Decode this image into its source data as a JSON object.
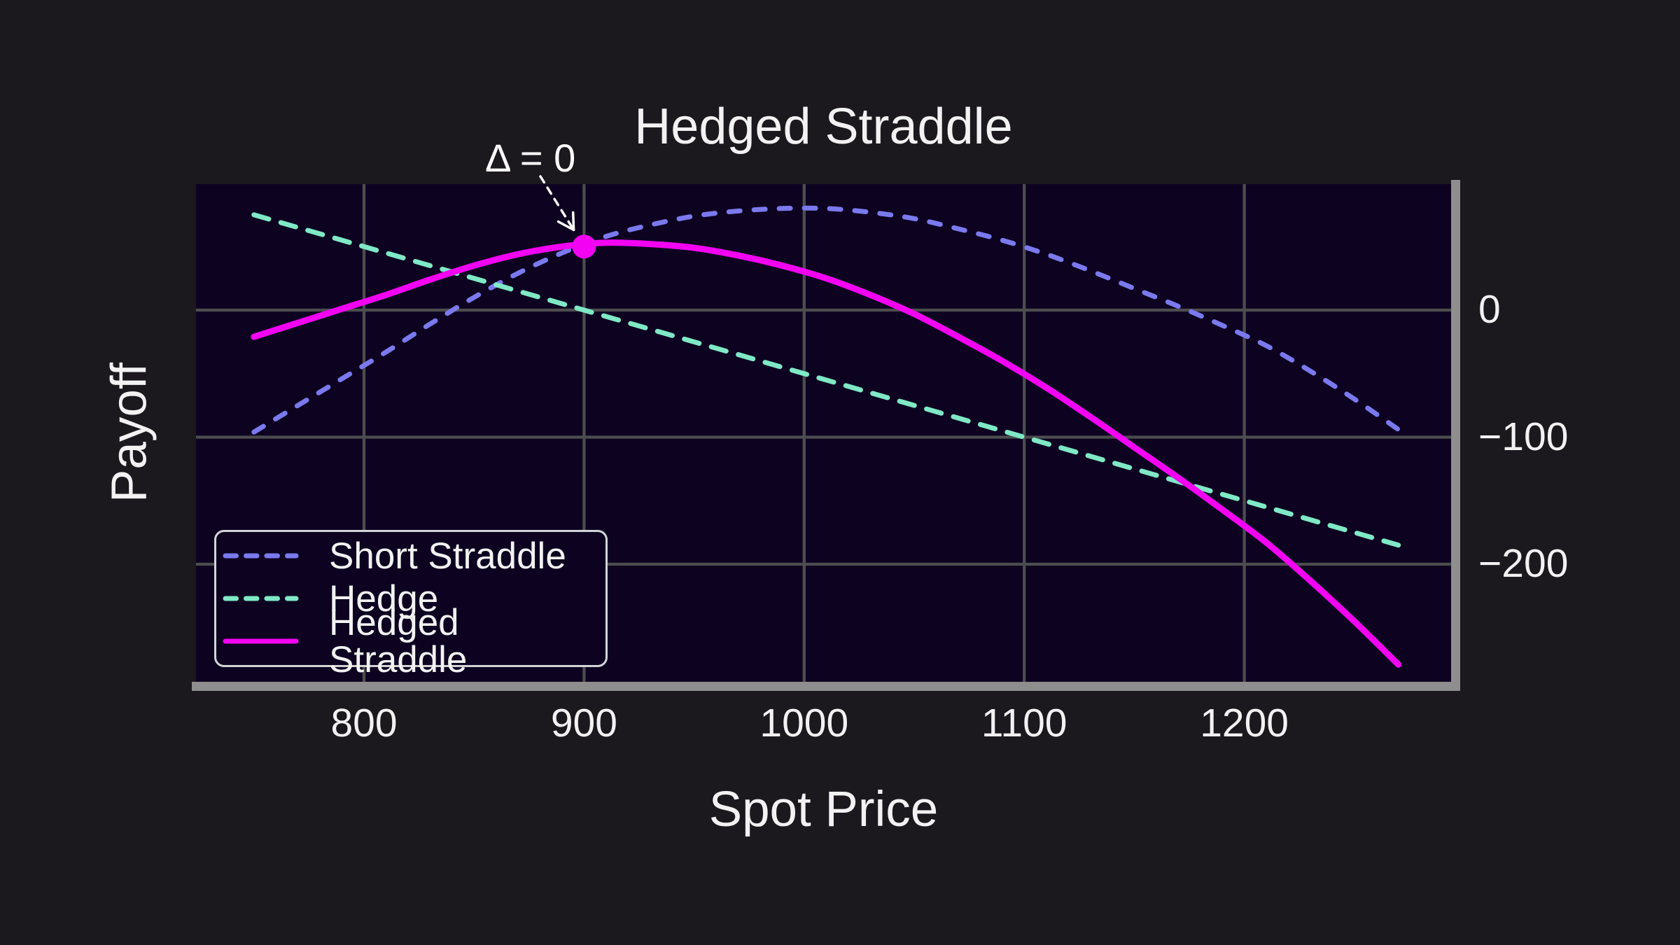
{
  "title": "Hedged Straddle",
  "axes": {
    "xlabel": "Spot Price",
    "ylabel": "Payoff",
    "x_tick_labels": [
      "800",
      "900",
      "1000",
      "1100",
      "1200"
    ],
    "y_tick_labels": [
      "0",
      "−100",
      "−200"
    ]
  },
  "annotation": {
    "text": "Δ = 0"
  },
  "legend": {
    "items": [
      {
        "label": "Short Straddle",
        "style": "dashed",
        "color": "#7b79ee"
      },
      {
        "label": "Hedge",
        "style": "dashed",
        "color": "#7fe9c6"
      },
      {
        "label": "Hedged Straddle",
        "style": "solid",
        "color": "#f203f2"
      }
    ]
  },
  "colors": {
    "outer_background": "#1b181e",
    "plot_background": "#0d0321",
    "gridline": "#4d4d4f",
    "shadow_spine": "#8e8e8e",
    "text": "#f2f2f2",
    "annotation": "#ffffff",
    "legend_border": "#d3d3d6",
    "marker": "#f203f2"
  },
  "chart_data": {
    "type": "line",
    "title": "Hedged Straddle",
    "xlabel": "Spot Price",
    "ylabel": "Payoff",
    "x_ticks": [
      800,
      900,
      1000,
      1100,
      1200
    ],
    "y_ticks": [
      0,
      -100,
      -200
    ],
    "y_tick_side": "right",
    "xlim": [
      724,
      1294
    ],
    "ylim": [
      -293,
      99
    ],
    "grid": true,
    "legend_position": "lower left",
    "series": [
      {
        "name": "Short Straddle",
        "color": "#7b79ee",
        "style": "dashed",
        "width": 7,
        "points": [
          [
            750,
            -96
          ],
          [
            770,
            -75
          ],
          [
            790,
            -54
          ],
          [
            810,
            -33
          ],
          [
            830,
            -11
          ],
          [
            850,
            10
          ],
          [
            870,
            29
          ],
          [
            890,
            45
          ],
          [
            910,
            58
          ],
          [
            930,
            67
          ],
          [
            950,
            74
          ],
          [
            970,
            78
          ],
          [
            990,
            80
          ],
          [
            1010,
            80
          ],
          [
            1030,
            77
          ],
          [
            1050,
            72
          ],
          [
            1070,
            64
          ],
          [
            1090,
            55
          ],
          [
            1110,
            44
          ],
          [
            1130,
            31
          ],
          [
            1150,
            17
          ],
          [
            1170,
            3
          ],
          [
            1190,
            -12
          ],
          [
            1210,
            -28
          ],
          [
            1230,
            -48
          ],
          [
            1250,
            -70
          ],
          [
            1270,
            -94
          ]
        ]
      },
      {
        "name": "Hedge",
        "color": "#7fe9c6",
        "style": "dashed",
        "width": 7,
        "points": [
          [
            750,
            75
          ],
          [
            1270,
            -185
          ]
        ]
      },
      {
        "name": "Hedged Straddle",
        "color": "#f203f2",
        "style": "solid",
        "width": 9,
        "points": [
          [
            750,
            -21
          ],
          [
            770,
            -10
          ],
          [
            790,
            1
          ],
          [
            810,
            12
          ],
          [
            830,
            24
          ],
          [
            850,
            35
          ],
          [
            870,
            44
          ],
          [
            890,
            50
          ],
          [
            910,
            53
          ],
          [
            930,
            52
          ],
          [
            950,
            49
          ],
          [
            970,
            43
          ],
          [
            990,
            35
          ],
          [
            1010,
            25
          ],
          [
            1030,
            12
          ],
          [
            1050,
            -3
          ],
          [
            1070,
            -21
          ],
          [
            1090,
            -40
          ],
          [
            1110,
            -61
          ],
          [
            1130,
            -84
          ],
          [
            1150,
            -108
          ],
          [
            1170,
            -132
          ],
          [
            1190,
            -157
          ],
          [
            1210,
            -183
          ],
          [
            1230,
            -213
          ],
          [
            1250,
            -245
          ],
          [
            1270,
            -279
          ]
        ]
      }
    ],
    "annotation": {
      "text": "Δ = 0",
      "point": [
        900,
        50
      ],
      "marker_radius_px": 17
    }
  }
}
